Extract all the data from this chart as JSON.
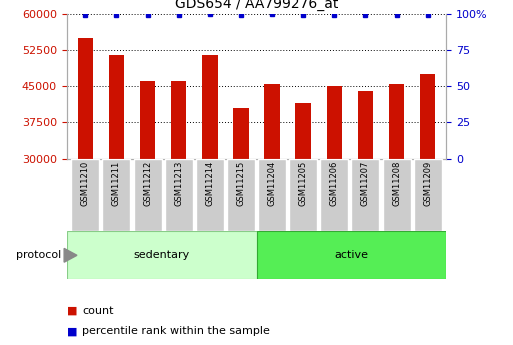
{
  "title": "GDS654 / AA799276_at",
  "samples": [
    "GSM11210",
    "GSM11211",
    "GSM11212",
    "GSM11213",
    "GSM11214",
    "GSM11215",
    "GSM11204",
    "GSM11205",
    "GSM11206",
    "GSM11207",
    "GSM11208",
    "GSM11209"
  ],
  "counts": [
    55000,
    51500,
    46000,
    46000,
    51500,
    40500,
    45500,
    41500,
    45000,
    44000,
    45500,
    47500
  ],
  "percentile_ranks": [
    99,
    99,
    99,
    99,
    100,
    99,
    100,
    99,
    99,
    99,
    99,
    99
  ],
  "bar_color": "#cc1100",
  "pct_color": "#0000cc",
  "ylim_left": [
    30000,
    60000
  ],
  "yticks_left": [
    30000,
    37500,
    45000,
    52500,
    60000
  ],
  "ylim_right": [
    0,
    100
  ],
  "yticks_right": [
    0,
    25,
    50,
    75,
    100
  ],
  "ytick_right_labels": [
    "0",
    "25",
    "50",
    "75",
    "100%"
  ],
  "groups": [
    {
      "label": "sedentary",
      "indices": [
        0,
        1,
        2,
        3,
        4,
        5
      ],
      "color": "#ccffcc",
      "edge": "#88cc88"
    },
    {
      "label": "active",
      "indices": [
        6,
        7,
        8,
        9,
        10,
        11
      ],
      "color": "#55ee55",
      "edge": "#33aa33"
    }
  ],
  "protocol_label": "protocol",
  "legend_count_label": "count",
  "legend_pct_label": "percentile rank within the sample",
  "title_fontsize": 10,
  "tick_fontsize": 8,
  "label_fontsize": 8,
  "bar_width": 0.5
}
